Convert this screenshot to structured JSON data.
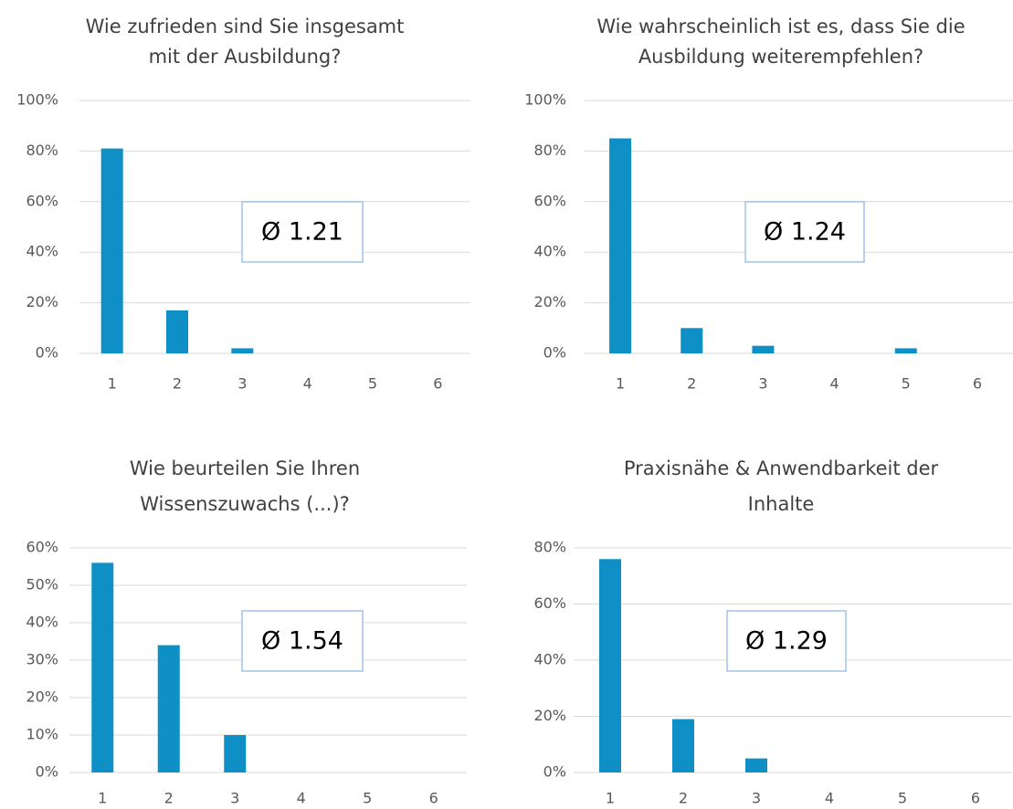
{
  "chart_data": [
    {
      "type": "bar",
      "title": [
        "Wie zufrieden sind Sie insgesamt",
        "mit der Ausbildung?"
      ],
      "categories": [
        "1",
        "2",
        "3",
        "4",
        "5",
        "6"
      ],
      "values": [
        81,
        17,
        2,
        0,
        0,
        0
      ],
      "color": "#0e8fc6",
      "ylim": [
        0,
        100
      ],
      "yticks": [
        {
          "value": 0,
          "label": "0%"
        },
        {
          "value": 20,
          "label": "20%"
        },
        {
          "value": 40,
          "label": "40%"
        },
        {
          "value": 60,
          "label": "60%"
        },
        {
          "value": 80,
          "label": "80%"
        },
        {
          "value": 100,
          "label": "100%"
        }
      ],
      "grid": true,
      "annotation": "Ø 1.21"
    },
    {
      "type": "bar",
      "title": [
        "Wie wahrscheinlich ist es, dass Sie die",
        "Ausbildung weiterempfehlen?"
      ],
      "categories": [
        "1",
        "2",
        "3",
        "4",
        "5",
        "6"
      ],
      "values": [
        85,
        10,
        3,
        0,
        2,
        0
      ],
      "color": "#0e8fc6",
      "ylim": [
        0,
        100
      ],
      "yticks": [
        {
          "value": 0,
          "label": "0%"
        },
        {
          "value": 20,
          "label": "20%"
        },
        {
          "value": 40,
          "label": "40%"
        },
        {
          "value": 60,
          "label": "60%"
        },
        {
          "value": 80,
          "label": "80%"
        },
        {
          "value": 100,
          "label": "100%"
        }
      ],
      "grid": true,
      "annotation": "Ø 1.24"
    },
    {
      "type": "bar",
      "title": [
        "Wie beurteilen Sie Ihren",
        "Wissenszuwachs (...)?"
      ],
      "categories": [
        "1",
        "2",
        "3",
        "4",
        "5",
        "6"
      ],
      "values": [
        56,
        34,
        10,
        0,
        0,
        0
      ],
      "color": "#0e8fc6",
      "ylim": [
        0,
        60
      ],
      "yticks": [
        {
          "value": 0,
          "label": "0%"
        },
        {
          "value": 10,
          "label": "10%"
        },
        {
          "value": 20,
          "label": "20%"
        },
        {
          "value": 30,
          "label": "30%"
        },
        {
          "value": 40,
          "label": "40%"
        },
        {
          "value": 50,
          "label": "50%"
        },
        {
          "value": 60,
          "label": "60%"
        }
      ],
      "grid": true,
      "annotation": "Ø 1.54"
    },
    {
      "type": "bar",
      "title": [
        "Praxisnähe & Anwendbarkeit der",
        "Inhalte"
      ],
      "categories": [
        "1",
        "2",
        "3",
        "4",
        "5",
        "6"
      ],
      "values": [
        76,
        19,
        5,
        0,
        0,
        0
      ],
      "color": "#0e8fc6",
      "ylim": [
        0,
        80
      ],
      "yticks": [
        {
          "value": 0,
          "label": "0%"
        },
        {
          "value": 20,
          "label": "20%"
        },
        {
          "value": 40,
          "label": "40%"
        },
        {
          "value": 60,
          "label": "60%"
        },
        {
          "value": 80,
          "label": "80%"
        }
      ],
      "grid": true,
      "annotation": "Ø 1.29"
    }
  ]
}
